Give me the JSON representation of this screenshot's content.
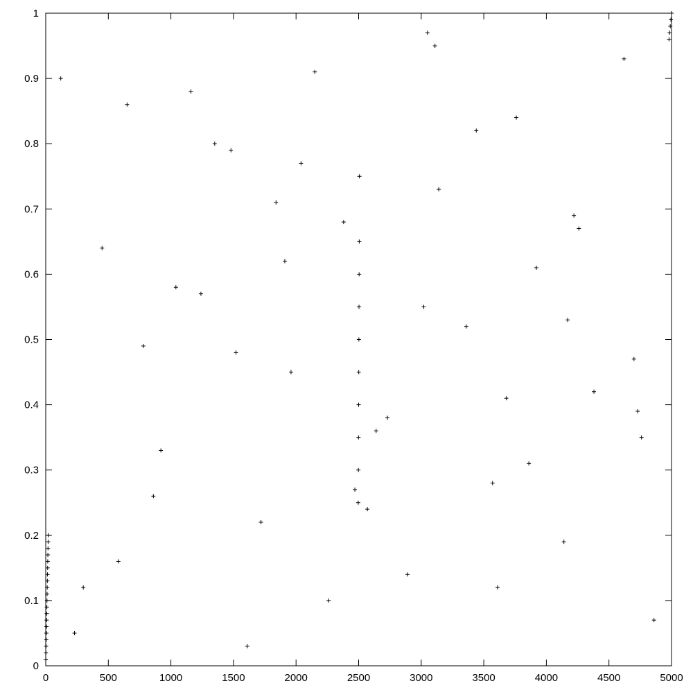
{
  "chart_data": {
    "type": "scatter",
    "title": "",
    "xlabel": "",
    "ylabel": "",
    "xlim": [
      0,
      5000
    ],
    "ylim": [
      0,
      1
    ],
    "x_ticks": [
      "0",
      "500",
      "1000",
      "1500",
      "2000",
      "2500",
      "3000",
      "3500",
      "4000",
      "4500",
      "5000"
    ],
    "y_ticks": [
      "0",
      "0.1",
      "0.2",
      "0.3",
      "0.4",
      "0.5",
      "0.6",
      "0.7",
      "0.8",
      "0.9",
      "1"
    ],
    "x_tick_values": [
      0,
      500,
      1000,
      1500,
      2000,
      2500,
      3000,
      3500,
      4000,
      4500,
      5000
    ],
    "y_tick_values": [
      0,
      0.1,
      0.2,
      0.3,
      0.4,
      0.5,
      0.6,
      0.7,
      0.8,
      0.9,
      1
    ],
    "grid": false,
    "legend": "none",
    "marker": "plus",
    "marker_color": "#000000",
    "series": [
      {
        "name": "",
        "points": {
          "x": [
            1,
            2,
            3,
            4,
            5,
            6,
            7,
            8,
            9,
            10,
            11,
            12,
            13,
            14,
            15,
            16,
            17,
            18,
            19,
            20,
            2497,
            2498,
            2499,
            2500,
            2501,
            2502,
            2503,
            2504,
            2505,
            2506,
            4980,
            4985,
            4990,
            4995,
            5000,
            300,
            650,
            920,
            1240,
            1480,
            1720,
            1960,
            2150,
            2380,
            2730,
            2890,
            3140,
            3360,
            3570,
            3760,
            3920,
            4140,
            4380,
            4620,
            4860,
            450,
            860,
            1160,
            1520,
            1840,
            2260,
            2640,
            3020,
            3440,
            3860,
            4260,
            4700,
            120,
            580,
            1040,
            1610,
            2040,
            2570,
            3110,
            3680,
            4220,
            4760,
            230,
            780,
            1350,
            1910,
            2470,
            3050,
            3610,
            4170,
            4730
          ],
          "y": [
            0.01,
            0.02,
            0.03,
            0.04,
            0.05,
            0.06,
            0.07,
            0.08,
            0.09,
            0.1,
            0.11,
            0.12,
            0.13,
            0.14,
            0.15,
            0.16,
            0.17,
            0.18,
            0.19,
            0.2,
            0.25,
            0.3,
            0.35,
            0.4,
            0.45,
            0.5,
            0.55,
            0.6,
            0.65,
            0.75,
            0.96,
            0.97,
            0.98,
            0.99,
            1.0,
            0.12,
            0.86,
            0.33,
            0.57,
            0.79,
            0.22,
            0.45,
            0.91,
            0.68,
            0.38,
            0.14,
            0.73,
            0.52,
            0.28,
            0.84,
            0.61,
            0.19,
            0.42,
            0.93,
            0.07,
            0.64,
            0.26,
            0.88,
            0.48,
            0.71,
            0.1,
            0.36,
            0.55,
            0.82,
            0.31,
            0.67,
            0.47,
            0.9,
            0.16,
            0.58,
            0.03,
            0.77,
            0.24,
            0.95,
            0.41,
            0.69,
            0.35,
            0.05,
            0.49,
            0.8,
            0.62,
            0.27,
            0.97,
            0.12,
            0.53,
            0.39
          ]
        }
      }
    ]
  }
}
